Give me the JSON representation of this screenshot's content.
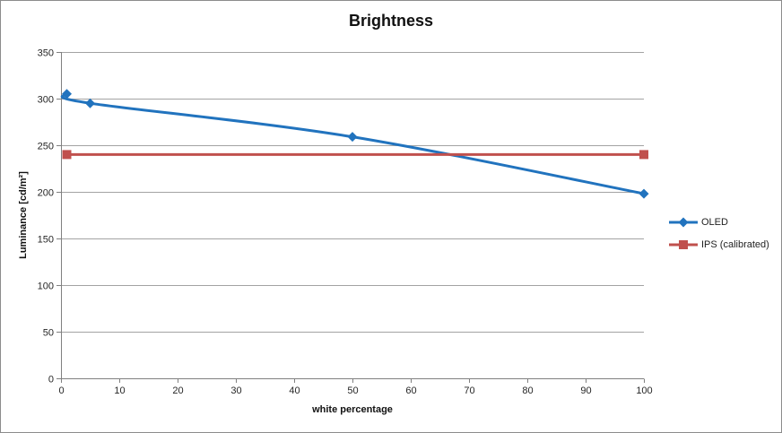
{
  "chart_data": {
    "type": "line",
    "title": "Brightness",
    "xlabel": "white percentage",
    "ylabel": "Luminance [cd/m²]",
    "xlim": [
      0,
      100
    ],
    "ylim": [
      0,
      350
    ],
    "x_ticks": [
      0,
      10,
      20,
      30,
      40,
      50,
      60,
      70,
      80,
      90,
      100
    ],
    "y_ticks": [
      0,
      50,
      100,
      150,
      200,
      250,
      300,
      350
    ],
    "grid": "horizontal",
    "legend_position": "right",
    "grid_color": "#a3a3a3",
    "axis_color": "#808080",
    "text_color": "#262626",
    "series": [
      {
        "name": "OLED",
        "color": "#2173be",
        "marker": "diamond",
        "line": "smooth",
        "points": [
          [
            1,
            305
          ],
          [
            5,
            295
          ],
          [
            50,
            259
          ],
          [
            100,
            198
          ]
        ]
      },
      {
        "name": "IPS (calibrated)",
        "color": "#c0504d",
        "marker": "square",
        "line": "straight",
        "points": [
          [
            1,
            240
          ],
          [
            100,
            240
          ]
        ]
      }
    ]
  }
}
